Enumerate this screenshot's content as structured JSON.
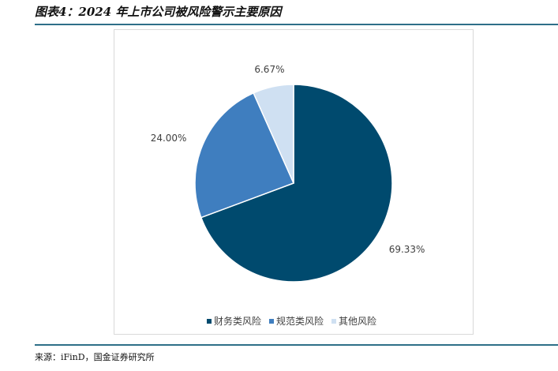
{
  "header": {
    "title": "图表4：2024 年上市公司被风险警示主要原因"
  },
  "chart_data": {
    "type": "pie",
    "title": "",
    "categories": [
      "财务类风险",
      "规范类风险",
      "其他风险"
    ],
    "values": [
      69.33,
      24.0,
      6.67
    ],
    "data_labels": [
      "69.33%",
      "24.00%",
      "6.67%"
    ],
    "colors": [
      "#004a6e",
      "#3f7ebf",
      "#cfe0f2"
    ],
    "legend": "bottom",
    "start_angle": "12 o'clock, clockwise"
  },
  "footer": {
    "source": "来源：iFinD，国金证券研究所"
  }
}
